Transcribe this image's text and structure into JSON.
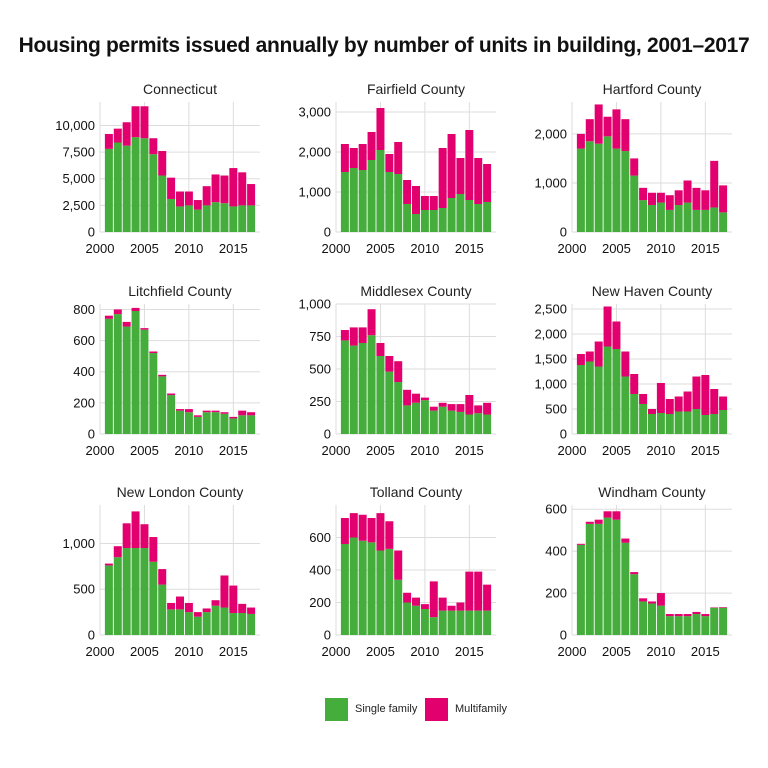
{
  "title": "Housing permits issued annually by number of units in building, 2001–2017",
  "colors": {
    "single": "#45AD3C",
    "multi": "#E2006F",
    "grid": "#dddddd"
  },
  "legend": {
    "single_label": "Single family",
    "multi_label": "Multifamily"
  },
  "chart_data": [
    {
      "type": "bar",
      "stacked": true,
      "title": "Connecticut",
      "x": [
        2001,
        2002,
        2003,
        2004,
        2005,
        2006,
        2007,
        2008,
        2009,
        2010,
        2011,
        2012,
        2013,
        2014,
        2015,
        2016,
        2017
      ],
      "xlim": [
        2000,
        2018
      ],
      "xticks": [
        2000,
        2005,
        2010,
        2015
      ],
      "xtick_labels": [
        "2000",
        "2005",
        "2010",
        "2015"
      ],
      "ylim": [
        0,
        12200
      ],
      "yticks": [
        0,
        2500,
        5000,
        7500,
        10000
      ],
      "ytick_labels": [
        "0",
        "2,500",
        "5,000",
        "7,500",
        "10,000"
      ],
      "series": [
        {
          "name": "Single family",
          "values": [
            7800,
            8400,
            8100,
            8900,
            8800,
            7300,
            5300,
            3100,
            2400,
            2500,
            2100,
            2500,
            2800,
            2700,
            2400,
            2500,
            2500
          ]
        },
        {
          "name": "Multifamily",
          "values": [
            1400,
            1300,
            2200,
            2900,
            3000,
            1500,
            2300,
            2000,
            1400,
            1300,
            900,
            1800,
            2600,
            2600,
            3600,
            3100,
            2000
          ]
        }
      ]
    },
    {
      "type": "bar",
      "stacked": true,
      "title": "Fairfield County",
      "x": [
        2001,
        2002,
        2003,
        2004,
        2005,
        2006,
        2007,
        2008,
        2009,
        2010,
        2011,
        2012,
        2013,
        2014,
        2015,
        2016,
        2017
      ],
      "xlim": [
        2000,
        2018
      ],
      "xticks": [
        2000,
        2005,
        2010,
        2015
      ],
      "xtick_labels": [
        "2000",
        "2005",
        "2010",
        "2015"
      ],
      "ylim": [
        0,
        3250
      ],
      "yticks": [
        0,
        1000,
        2000,
        3000
      ],
      "ytick_labels": [
        "0",
        "1,000",
        "2,000",
        "3,000"
      ],
      "series": [
        {
          "name": "Single family",
          "values": [
            1500,
            1600,
            1550,
            1800,
            2050,
            1500,
            1450,
            700,
            450,
            550,
            550,
            600,
            850,
            950,
            800,
            700,
            750
          ]
        },
        {
          "name": "Multifamily",
          "values": [
            700,
            500,
            650,
            700,
            1050,
            450,
            800,
            600,
            700,
            350,
            350,
            1500,
            1600,
            900,
            1750,
            1150,
            950
          ]
        }
      ]
    },
    {
      "type": "bar",
      "stacked": true,
      "title": "Hartford County",
      "x": [
        2001,
        2002,
        2003,
        2004,
        2005,
        2006,
        2007,
        2008,
        2009,
        2010,
        2011,
        2012,
        2013,
        2014,
        2015,
        2016,
        2017
      ],
      "xlim": [
        2000,
        2018
      ],
      "xticks": [
        2000,
        2005,
        2010,
        2015
      ],
      "xtick_labels": [
        "2000",
        "2005",
        "2010",
        "2015"
      ],
      "ylim": [
        0,
        2650
      ],
      "yticks": [
        0,
        1000,
        2000
      ],
      "ytick_labels": [
        "0",
        "1,000",
        "2,000"
      ],
      "series": [
        {
          "name": "Single family",
          "values": [
            1700,
            1850,
            1800,
            1950,
            1700,
            1650,
            1150,
            650,
            550,
            600,
            450,
            550,
            600,
            450,
            450,
            500,
            400
          ]
        },
        {
          "name": "Multifamily",
          "values": [
            300,
            450,
            800,
            400,
            800,
            650,
            350,
            250,
            250,
            200,
            300,
            300,
            450,
            450,
            400,
            950,
            550
          ]
        }
      ]
    },
    {
      "type": "bar",
      "stacked": true,
      "title": "Litchfield County",
      "x": [
        2001,
        2002,
        2003,
        2004,
        2005,
        2006,
        2007,
        2008,
        2009,
        2010,
        2011,
        2012,
        2013,
        2014,
        2015,
        2016,
        2017
      ],
      "xlim": [
        2000,
        2018
      ],
      "xticks": [
        2000,
        2005,
        2010,
        2015
      ],
      "xtick_labels": [
        "2000",
        "2005",
        "2010",
        "2015"
      ],
      "ylim": [
        0,
        835
      ],
      "yticks": [
        0,
        200,
        400,
        600,
        800
      ],
      "ytick_labels": [
        "0",
        "200",
        "400",
        "600",
        "800"
      ],
      "series": [
        {
          "name": "Single family",
          "values": [
            740,
            770,
            690,
            790,
            670,
            520,
            370,
            250,
            150,
            140,
            110,
            140,
            140,
            130,
            100,
            120,
            120
          ]
        },
        {
          "name": "Multifamily",
          "values": [
            20,
            30,
            30,
            20,
            10,
            10,
            10,
            10,
            10,
            20,
            10,
            10,
            10,
            10,
            10,
            30,
            20
          ]
        }
      ]
    },
    {
      "type": "bar",
      "stacked": true,
      "title": "Middlesex County",
      "x": [
        2001,
        2002,
        2003,
        2004,
        2005,
        2006,
        2007,
        2008,
        2009,
        2010,
        2011,
        2012,
        2013,
        2014,
        2015,
        2016,
        2017
      ],
      "xlim": [
        2000,
        2018
      ],
      "xticks": [
        2000,
        2005,
        2010,
        2015
      ],
      "xtick_labels": [
        "2000",
        "2005",
        "2010",
        "2015"
      ],
      "ylim": [
        0,
        1000
      ],
      "yticks": [
        0,
        250,
        500,
        750,
        1000
      ],
      "ytick_labels": [
        "0",
        "250",
        "500",
        "750",
        "1,000"
      ],
      "series": [
        {
          "name": "Single family",
          "values": [
            720,
            680,
            700,
            760,
            600,
            480,
            400,
            220,
            240,
            260,
            180,
            210,
            180,
            170,
            150,
            160,
            150
          ]
        },
        {
          "name": "Multifamily",
          "values": [
            80,
            140,
            120,
            200,
            100,
            120,
            160,
            120,
            70,
            20,
            30,
            30,
            50,
            60,
            150,
            60,
            90
          ]
        }
      ]
    },
    {
      "type": "bar",
      "stacked": true,
      "title": "New Haven County",
      "x": [
        2001,
        2002,
        2003,
        2004,
        2005,
        2006,
        2007,
        2008,
        2009,
        2010,
        2011,
        2012,
        2013,
        2014,
        2015,
        2016,
        2017
      ],
      "xlim": [
        2000,
        2018
      ],
      "xticks": [
        2000,
        2005,
        2010,
        2015
      ],
      "xtick_labels": [
        "2000",
        "2005",
        "2010",
        "2015"
      ],
      "ylim": [
        0,
        2600
      ],
      "yticks": [
        0,
        500,
        1000,
        1500,
        2000,
        2500
      ],
      "ytick_labels": [
        "0",
        "500",
        "1,000",
        "1,500",
        "2,000",
        "2,500"
      ],
      "series": [
        {
          "name": "Single family",
          "values": [
            1380,
            1450,
            1350,
            1750,
            1700,
            1150,
            800,
            600,
            400,
            420,
            400,
            450,
            450,
            500,
            380,
            400,
            480
          ]
        },
        {
          "name": "Multifamily",
          "values": [
            220,
            200,
            500,
            800,
            550,
            500,
            400,
            200,
            100,
            600,
            300,
            300,
            400,
            650,
            800,
            500,
            270
          ]
        }
      ]
    },
    {
      "type": "bar",
      "stacked": true,
      "title": "New London County",
      "x": [
        2001,
        2002,
        2003,
        2004,
        2005,
        2006,
        2007,
        2008,
        2009,
        2010,
        2011,
        2012,
        2013,
        2014,
        2015,
        2016,
        2017
      ],
      "xlim": [
        2000,
        2018
      ],
      "xticks": [
        2000,
        2005,
        2010,
        2015
      ],
      "xtick_labels": [
        "2000",
        "2005",
        "2010",
        "2015"
      ],
      "ylim": [
        0,
        1420
      ],
      "yticks": [
        0,
        500,
        1000
      ],
      "ytick_labels": [
        "0",
        "500",
        "1,000"
      ],
      "series": [
        {
          "name": "Single family",
          "values": [
            760,
            850,
            950,
            950,
            950,
            800,
            550,
            280,
            280,
            250,
            200,
            250,
            320,
            300,
            240,
            240,
            230
          ]
        },
        {
          "name": "Multifamily",
          "values": [
            20,
            120,
            270,
            400,
            260,
            270,
            170,
            70,
            140,
            100,
            50,
            40,
            60,
            350,
            300,
            100,
            70
          ]
        }
      ]
    },
    {
      "type": "bar",
      "stacked": true,
      "title": "Tolland County",
      "x": [
        2001,
        2002,
        2003,
        2004,
        2005,
        2006,
        2007,
        2008,
        2009,
        2010,
        2011,
        2012,
        2013,
        2014,
        2015,
        2016,
        2017
      ],
      "xlim": [
        2000,
        2018
      ],
      "xticks": [
        2000,
        2005,
        2010,
        2015
      ],
      "xtick_labels": [
        "2000",
        "2005",
        "2010",
        "2015"
      ],
      "ylim": [
        0,
        800
      ],
      "yticks": [
        0,
        200,
        400,
        600
      ],
      "ytick_labels": [
        "0",
        "200",
        "400",
        "600"
      ],
      "series": [
        {
          "name": "Single family",
          "values": [
            560,
            600,
            580,
            570,
            520,
            530,
            340,
            200,
            180,
            160,
            110,
            150,
            150,
            150,
            150,
            150,
            150
          ]
        },
        {
          "name": "Multifamily",
          "values": [
            160,
            150,
            160,
            150,
            230,
            170,
            180,
            60,
            50,
            30,
            220,
            80,
            30,
            50,
            240,
            240,
            160
          ]
        }
      ]
    },
    {
      "type": "bar",
      "stacked": true,
      "title": "Windham County",
      "x": [
        2001,
        2002,
        2003,
        2004,
        2005,
        2006,
        2007,
        2008,
        2009,
        2010,
        2011,
        2012,
        2013,
        2014,
        2015,
        2016,
        2017
      ],
      "xlim": [
        2000,
        2018
      ],
      "xticks": [
        2000,
        2005,
        2010,
        2015
      ],
      "xtick_labels": [
        "2000",
        "2005",
        "2010",
        "2015"
      ],
      "ylim": [
        0,
        620
      ],
      "yticks": [
        0,
        200,
        400,
        600
      ],
      "ytick_labels": [
        "0",
        "200",
        "400",
        "600"
      ],
      "series": [
        {
          "name": "Single family",
          "values": [
            430,
            530,
            530,
            560,
            550,
            440,
            290,
            160,
            150,
            140,
            90,
            90,
            90,
            100,
            90,
            130,
            130
          ]
        },
        {
          "name": "Multifamily",
          "values": [
            5,
            10,
            20,
            30,
            40,
            20,
            10,
            15,
            10,
            60,
            10,
            10,
            10,
            10,
            10,
            2,
            3
          ]
        }
      ]
    }
  ]
}
